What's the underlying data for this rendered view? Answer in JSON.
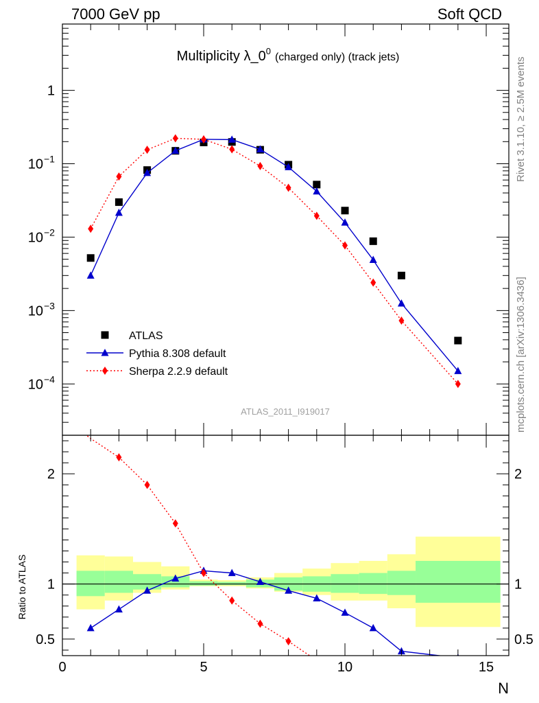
{
  "header": {
    "left": "7000 GeV pp",
    "right": "Soft QCD"
  },
  "side_labels": {
    "upper": "Rivet 3.1.10, ≥ 2.5M events",
    "lower": "mcplots.cern.ch [arXiv:1306.3436]"
  },
  "chart_data": [
    {
      "type": "scatter",
      "title": "Multiplicity λ_0",
      "title_sup": "0",
      "title_suffix": "(charged only) (track jets)",
      "analysis_id": "ATLAS_2011_I919017",
      "yscale": "log",
      "xlim": [
        0,
        15.8
      ],
      "ylim": [
        2e-05,
        8
      ],
      "legend_position": "bottom-left",
      "x": [
        1,
        2,
        3,
        4,
        5,
        6,
        7,
        8,
        9,
        10,
        11,
        12,
        14
      ],
      "series": [
        {
          "name": "ATLAS",
          "color": "#000000",
          "marker": "square",
          "line": "none",
          "x": [
            1,
            2,
            3,
            4,
            5,
            6,
            7,
            8,
            9,
            10,
            11,
            12,
            14
          ],
          "values": [
            0.0052,
            0.03,
            0.082,
            0.15,
            0.195,
            0.198,
            0.155,
            0.097,
            0.052,
            0.023,
            0.0088,
            0.003,
            0.00039
          ]
        },
        {
          "name": "Pythia 8.308 default",
          "color": "#0000cc",
          "marker": "triangle",
          "line": "solid",
          "x": [
            1,
            2,
            3,
            4,
            5,
            6,
            7,
            8,
            9,
            10,
            11,
            12,
            14
          ],
          "values": [
            0.003,
            0.0215,
            0.075,
            0.15,
            0.215,
            0.213,
            0.157,
            0.09,
            0.042,
            0.0158,
            0.0049,
            0.00125,
            0.00015
          ]
        },
        {
          "name": "Sherpa 2.2.9 default",
          "color": "#ff0000",
          "marker": "diamond",
          "line": "dotted",
          "x": [
            1,
            2,
            3,
            4,
            5,
            6,
            7,
            8,
            9,
            10,
            11,
            12,
            14
          ],
          "values": [
            0.013,
            0.067,
            0.155,
            0.222,
            0.215,
            0.157,
            0.093,
            0.047,
            0.0195,
            0.0077,
            0.0024,
            0.00073,
            0.0001
          ]
        }
      ],
      "yticks": [
        {
          "value": 1,
          "label": "1"
        },
        {
          "value": 0.1,
          "base": "10",
          "exp": "−1"
        },
        {
          "value": 0.01,
          "base": "10",
          "exp": "−2"
        },
        {
          "value": 0.001,
          "base": "10",
          "exp": "−3"
        },
        {
          "value": 0.0001,
          "base": "10",
          "exp": "−4"
        }
      ]
    },
    {
      "type": "line",
      "ylabel": "Ratio to ATLAS",
      "xlabel": "N",
      "xlim": [
        0,
        15.8
      ],
      "ylim": [
        0.35,
        2.35
      ],
      "xticks": [
        0,
        5,
        10,
        15
      ],
      "yticks": [
        0.5,
        1,
        2
      ],
      "reference_line": 1,
      "bands": [
        {
          "x0": 0.5,
          "x1": 1.5,
          "in_lo": 0.89,
          "in_hi": 1.12,
          "out_lo": 0.77,
          "out_hi": 1.26
        },
        {
          "x0": 1.5,
          "x1": 2.5,
          "in_lo": 0.92,
          "in_hi": 1.12,
          "out_lo": 0.85,
          "out_hi": 1.25
        },
        {
          "x0": 2.5,
          "x1": 3.5,
          "in_lo": 0.95,
          "in_hi": 1.09,
          "out_lo": 0.92,
          "out_hi": 1.2
        },
        {
          "x0": 3.5,
          "x1": 4.5,
          "in_lo": 0.97,
          "in_hi": 1.07,
          "out_lo": 0.95,
          "out_hi": 1.16
        },
        {
          "x0": 4.5,
          "x1": 5.5,
          "in_lo": 0.985,
          "in_hi": 1.025,
          "out_lo": 0.98,
          "out_hi": 1.04
        },
        {
          "x0": 5.5,
          "x1": 6.5,
          "in_lo": 0.99,
          "in_hi": 1.02,
          "out_lo": 0.98,
          "out_hi": 1.035
        },
        {
          "x0": 6.5,
          "x1": 7.5,
          "in_lo": 0.97,
          "in_hi": 1.04,
          "out_lo": 0.96,
          "out_hi": 1.06
        },
        {
          "x0": 7.5,
          "x1": 8.5,
          "in_lo": 0.94,
          "in_hi": 1.06,
          "out_lo": 0.93,
          "out_hi": 1.1
        },
        {
          "x0": 8.5,
          "x1": 9.5,
          "in_lo": 0.93,
          "in_hi": 1.07,
          "out_lo": 0.9,
          "out_hi": 1.14
        },
        {
          "x0": 9.5,
          "x1": 10.5,
          "in_lo": 0.92,
          "in_hi": 1.09,
          "out_lo": 0.85,
          "out_hi": 1.19
        },
        {
          "x0": 10.5,
          "x1": 11.5,
          "in_lo": 0.91,
          "in_hi": 1.1,
          "out_lo": 0.85,
          "out_hi": 1.21
        },
        {
          "x0": 11.5,
          "x1": 12.5,
          "in_lo": 0.9,
          "in_hi": 1.12,
          "out_lo": 0.78,
          "out_hi": 1.27
        },
        {
          "x0": 12.5,
          "x1": 15.5,
          "in_lo": 0.83,
          "in_hi": 1.21,
          "out_lo": 0.61,
          "out_hi": 1.43
        }
      ],
      "band_colors": {
        "inner": "#98ff98",
        "outer": "#ffff99"
      },
      "series": [
        {
          "name": "Pythia 8.308 default",
          "color": "#0000cc",
          "marker": "triangle",
          "line": "solid",
          "x": [
            1,
            2,
            3,
            4,
            5,
            6,
            7,
            8,
            9,
            10,
            11,
            12,
            14
          ],
          "values": [
            0.6,
            0.77,
            0.94,
            1.05,
            1.12,
            1.1,
            1.02,
            0.94,
            0.87,
            0.74,
            0.6,
            0.39,
            0.33
          ]
        },
        {
          "name": "Sherpa 2.2.9 default",
          "color": "#ff0000",
          "marker": "diamond",
          "line": "dotted",
          "x": [
            0.5,
            1,
            2,
            3,
            4,
            5,
            6,
            7,
            8,
            8.75
          ],
          "values": [
            2.42,
            2.32,
            2.15,
            1.9,
            1.55,
            1.1,
            0.85,
            0.64,
            0.48,
            0.35
          ],
          "markers_at": [
            2,
            3,
            4,
            5,
            6,
            7,
            8
          ]
        }
      ]
    }
  ]
}
